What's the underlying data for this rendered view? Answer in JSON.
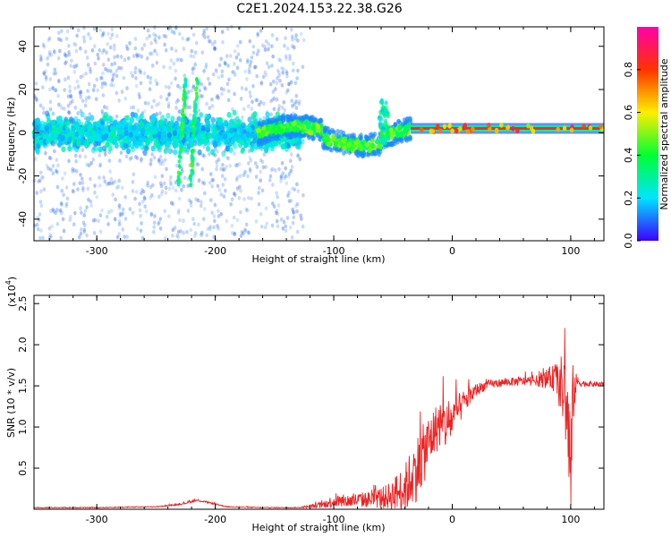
{
  "title": "C2E1.2024.153.22.38.G26",
  "colors": {
    "axis": "#000000",
    "snr_line": "#ee2222",
    "colorbar": [
      "#3d00ff",
      "#00e5ff",
      "#00ff33",
      "#ffee00",
      "#ff3300",
      "#ff00aa"
    ]
  },
  "chart_data": [
    {
      "type": "heatmap",
      "xlabel": "Height of straight line (km)",
      "ylabel": "Frequency (Hz)",
      "xlim": [
        -353,
        128
      ],
      "ylim": [
        -50,
        49
      ],
      "x_ticks": [
        -300,
        -200,
        -100,
        0,
        100
      ],
      "y_ticks": [
        -40,
        -20,
        0,
        20,
        40
      ],
      "colorbar": {
        "label": "Normalized spectral amplitude",
        "range": [
          0,
          1
        ],
        "ticks": [
          0.0,
          0.2,
          0.4,
          0.6,
          0.8
        ]
      },
      "features": [
        {
          "kind": "broadband_noise",
          "x_range": [
            -353,
            -125
          ],
          "freq_spread": 49,
          "amplitude": 0.1
        },
        {
          "kind": "central_band",
          "x_range": [
            -353,
            -125
          ],
          "freq_spread": 8,
          "amplitude": 0.2
        },
        {
          "kind": "streaks",
          "x_center": [
            -228,
            -218
          ],
          "freq_range": [
            -25,
            25
          ],
          "amplitude": 0.35
        },
        {
          "kind": "wandering_band",
          "x_range": [
            -165,
            -35
          ],
          "amplitude": 0.45
        },
        {
          "kind": "spike",
          "x_center": -58,
          "freq_range": [
            -5,
            15
          ],
          "amplitude": 0.4
        },
        {
          "kind": "steady_line",
          "x_range": [
            -35,
            128
          ],
          "freq": 2,
          "amplitude": 0.85
        }
      ]
    },
    {
      "type": "line",
      "xlabel": "Height of straight line (km)",
      "ylabel": "SNR (10 * v/v)",
      "y_scale_label": "(x10",
      "y_scale_exp": "4",
      "y_scale_close": ")",
      "xlim": [
        -353,
        128
      ],
      "ylim": [
        0,
        2.6
      ],
      "x_ticks": [
        -300,
        -200,
        -100,
        0,
        100
      ],
      "y_ticks": [
        0.5,
        1.0,
        1.5,
        2.0,
        2.5
      ],
      "series": [
        {
          "x": [
            -353,
            -300,
            -250,
            -230,
            -215,
            -205,
            -190,
            -160,
            -130,
            -110,
            -100,
            -90,
            -70,
            -55,
            -40,
            -30,
            -20,
            -15,
            -10,
            -5,
            0,
            10,
            20,
            30,
            50,
            70,
            85,
            90,
            95,
            98,
            100,
            102,
            105,
            110,
            120,
            128
          ],
          "y": [
            0.02,
            0.02,
            0.03,
            0.06,
            0.11,
            0.08,
            0.03,
            0.02,
            0.02,
            0.05,
            0.1,
            0.1,
            0.12,
            0.15,
            0.25,
            0.5,
            0.8,
            0.95,
            1.05,
            1.0,
            1.1,
            1.3,
            1.45,
            1.52,
            1.55,
            1.56,
            1.6,
            1.55,
            1.4,
            1.0,
            0.3,
            1.4,
            1.55,
            1.53,
            1.52,
            1.52
          ],
          "noise": [
            0.005,
            0.005,
            0.005,
            0.01,
            0.015,
            0.01,
            0.005,
            0.005,
            0.005,
            0.04,
            0.08,
            0.08,
            0.1,
            0.15,
            0.3,
            0.4,
            0.35,
            0.3,
            0.3,
            0.3,
            0.25,
            0.15,
            0.08,
            0.05,
            0.05,
            0.06,
            0.15,
            0.3,
            0.5,
            0.7,
            0.9,
            0.4,
            0.08,
            0.04,
            0.03,
            0.03
          ]
        }
      ]
    }
  ]
}
